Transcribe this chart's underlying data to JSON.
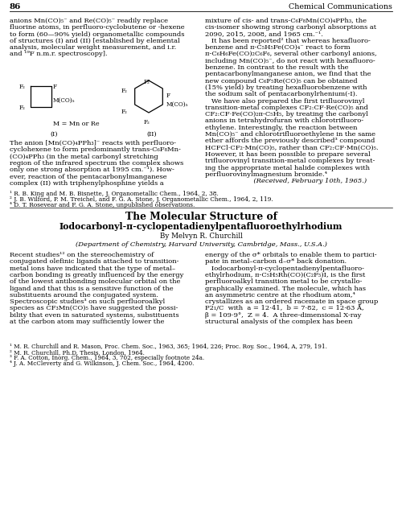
{
  "page_number": "86",
  "journal_header": "Chemical Communications",
  "bg_color": "#ffffff",
  "text_color": "#000000",
  "top_left_text": [
    "anions Mn(CO)₅⁻ and Re(CO)₅⁻ readily replace",
    "fluorine atoms, in perfluoro-cyclobutene or -hexene",
    "to form (60—90% yield) organometallic compounds",
    "of structures (I) and (II) [established by elemental",
    "analysis, molecular weight measurement, and i.r.",
    "and ¹⁹F n.m.r. spectroscopy]."
  ],
  "top_right_text": [
    "mixture of cis- and trans-C₆F₈Mn(CO)₄PPh₃, the",
    "cis-isomer showing strong carbonyl absorptions at",
    "2090, 2015, 2008, and 1965 cm.⁻¹.",
    "   It has been reported² that whereas hexafluoro-",
    "benzene and π-C₅H₅Fe(CO)₄⁻ react to form",
    "π-C₆H₆Fe(CO)₂C₆F₆, several other carbonyl anions,",
    "including Mn(CO)₅⁻, do not react with hexafluoro-",
    "benzene. In contrast to the result with the",
    "pentacarbonylmanganese anion, we find that the",
    "new compound C₆F₅Re(CO)₅ can be obtained",
    "(15% yield) by treating hexafluorobenzene with",
    "the sodium salt of pentacarbonylrhenium(-I).",
    "   We have also prepared the first trifluorovinyl",
    "transition-metal complexes CF₂:CF·Re(CO)₅ and",
    "CF₂:CF·Fe(CO)₂π-C₅H₅, by treating the carbonyl",
    "anions in tetrahydrofuran with chlorotrifluoro-",
    "ethylene. Interestingly, the reaction between",
    "Mn(CO)₅⁻ and chlorotrifluoroethylene in the same",
    "ether affords the previously described³ compound",
    "HCFCl·CF₂·Mn(CO)₅, rather than CF₂:CF·Mn(CO)₅.",
    "However, it has been possible to prepare several",
    "trifluorovinyl transition-metal complexes by treat-",
    "ing the appropriate metal halide complexes with",
    "perfluorovinylmagnesium bromide.⁴",
    "                       (Received, February 10th, 1965.)"
  ],
  "middle_left_text": [
    "The anion [Mn(CO)₄PPh₃]⁻ reacts with perfluoro-",
    "cyclohexene to form predominantly trans-C₆F₈Mn-",
    "(CO)₄PPh₃ (in the metal carbonyl stretching",
    "region of the infrared spectrum the complex shows",
    "only one strong absorption at 1995 cm.⁻¹). How-",
    "ever, reaction of the pentacarbonylmanganese",
    "complex (II) with triphenylphosphine yields a"
  ],
  "footnotes_top": [
    "¹ R. B. King and M. B. Bisnette, J. Organometallic Chem., 1964, 2, 38.",
    "² J. B. Wilford, P. M. Treichel, and F. G. A. Stone, J. Organometallic Chem., 1964, 2, 119.",
    "⁴ D. T. Rosevear and F. G. A. Stone, unpublished observations."
  ],
  "section_title_1": "The Molecular Structure of",
  "section_title_2": "Iodocarbonyl-π-cyclopentadienylpentafluoroethylrhodium",
  "author_line": "By Melvyn R. Churchill",
  "affiliation_line": "(Department of Chemistry, Harvard University, Cambridge, Mass., U.S.A.)",
  "body_left": [
    "Recent studies¹² on the stereochemistry of",
    "conjugated olefinic ligands attached to transition-",
    "metal ions have indicated that the type of metal–",
    "carbon bonding is greatly influenced by the energy",
    "of the lowest antibonding molecular orbital on the",
    "ligand and that this is a sensitive function of the",
    "substituents around the conjugated system.",
    "Spectroscopic studies³ on such perfluoroalkyl",
    "species as CF₃Mn(CO)₅ have suggested the possi-",
    "bility that even in saturated systems, substituents",
    "at the carbon atom may sufficiently lower the"
  ],
  "body_right": [
    "energy of the σ* orbitals to enable them to partici-",
    "pate in metal–carbon d–σ* back donation.",
    "   Iodocarbonyl-π-cyclopentadienylpentafluoro-",
    "ethylrhodium, π-C₅H₅Rh(CO)(C₂F₅)I, is the first",
    "perfluoroalkyl transition metal to be crystallo-",
    "graphically examined. The molecule, which has",
    "an asymmetric centre at the rhodium atom,⁴",
    "crystallizes as an ordered racemate in space group",
    "P2₁/C  with  a = 12·41,  b = 7·82,  c = 12·63 Å,",
    "β = 109·9°,  Z = 4.  A three-dimensional X-ray",
    "structural analysis of the complex has been"
  ],
  "footnotes_bottom": [
    "¹ M. R. Churchill and R. Mason, Proc. Chem. Soc., 1963, 365; 1964, 226; Proc. Roy. Soc., 1964, A, 279, 191.",
    "² M. R. Churchill, Ph.D. Thesis, London, 1964.",
    "³ F. A. Cotton, Inorg. Chem., 1964, 3, 702, especially footnote 24a.",
    "⁴ J. A. McCleverty and G. Wilkinson, J. Chem. Soc., 1964, 4200."
  ]
}
